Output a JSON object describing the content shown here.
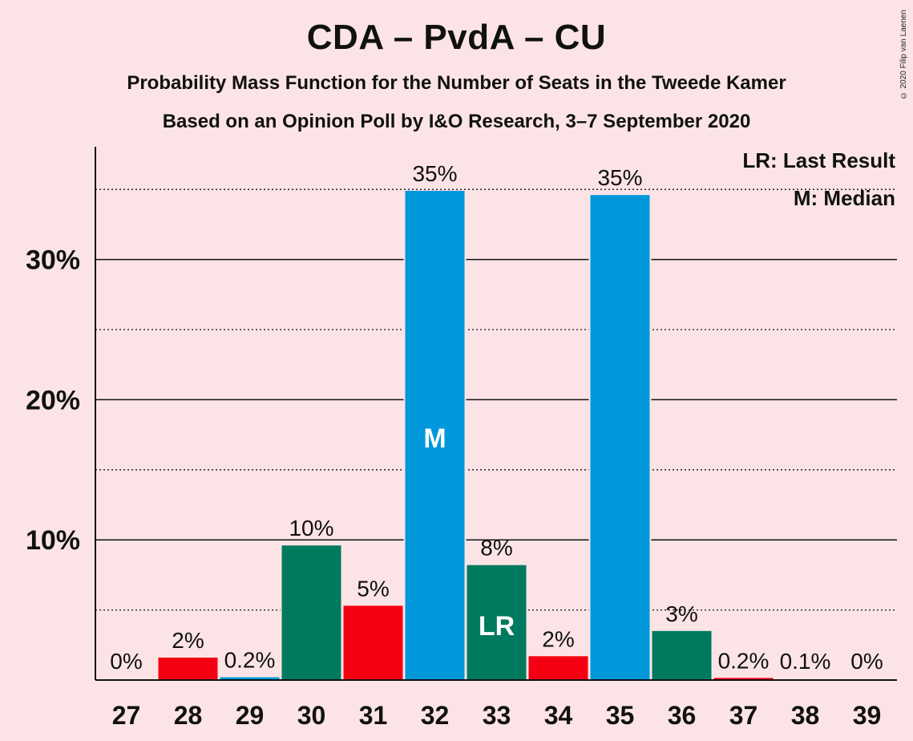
{
  "header": {
    "title": "CDA – PvdA – CU",
    "subtitle": "Probability Mass Function for the Number of Seats in the Tweede Kamer",
    "subtitle2": "Based on an Opinion Poll by I&O Research, 3–7 September 2020",
    "copyright": "© 2020 Filip van Laenen"
  },
  "chart_data": {
    "type": "bar",
    "categories": [
      "27",
      "28",
      "29",
      "30",
      "31",
      "32",
      "33",
      "34",
      "35",
      "36",
      "37",
      "38",
      "39"
    ],
    "values": [
      0,
      1.6,
      0.2,
      9.6,
      5.3,
      34.9,
      8.2,
      1.7,
      34.6,
      3.5,
      0.15,
      0.05,
      0
    ],
    "value_labels": [
      "0%",
      "2%",
      "0.2%",
      "10%",
      "5%",
      "35%",
      "8%",
      "2%",
      "35%",
      "3%",
      "0.2%",
      "0.1%",
      "0%"
    ],
    "bar_colors": [
      "#f50012",
      "#f50012",
      "#0098db",
      "#007a5e",
      "#f50012",
      "#0098db",
      "#007a5e",
      "#f50012",
      "#0098db",
      "#007a5e",
      "#f50012",
      "#0098db",
      "#007a5e"
    ],
    "bar_markers": {
      "32": "M",
      "33": "LR"
    },
    "ylim": [
      0,
      38
    ],
    "yticks": [
      10,
      20,
      30
    ],
    "ytick_labels": [
      "10%",
      "20%",
      "30%"
    ],
    "minor_gridlines": [
      5,
      15,
      25,
      35
    ],
    "legend": {
      "position": "top-right",
      "lines": [
        "LR: Last Result",
        "M: Median"
      ]
    }
  }
}
